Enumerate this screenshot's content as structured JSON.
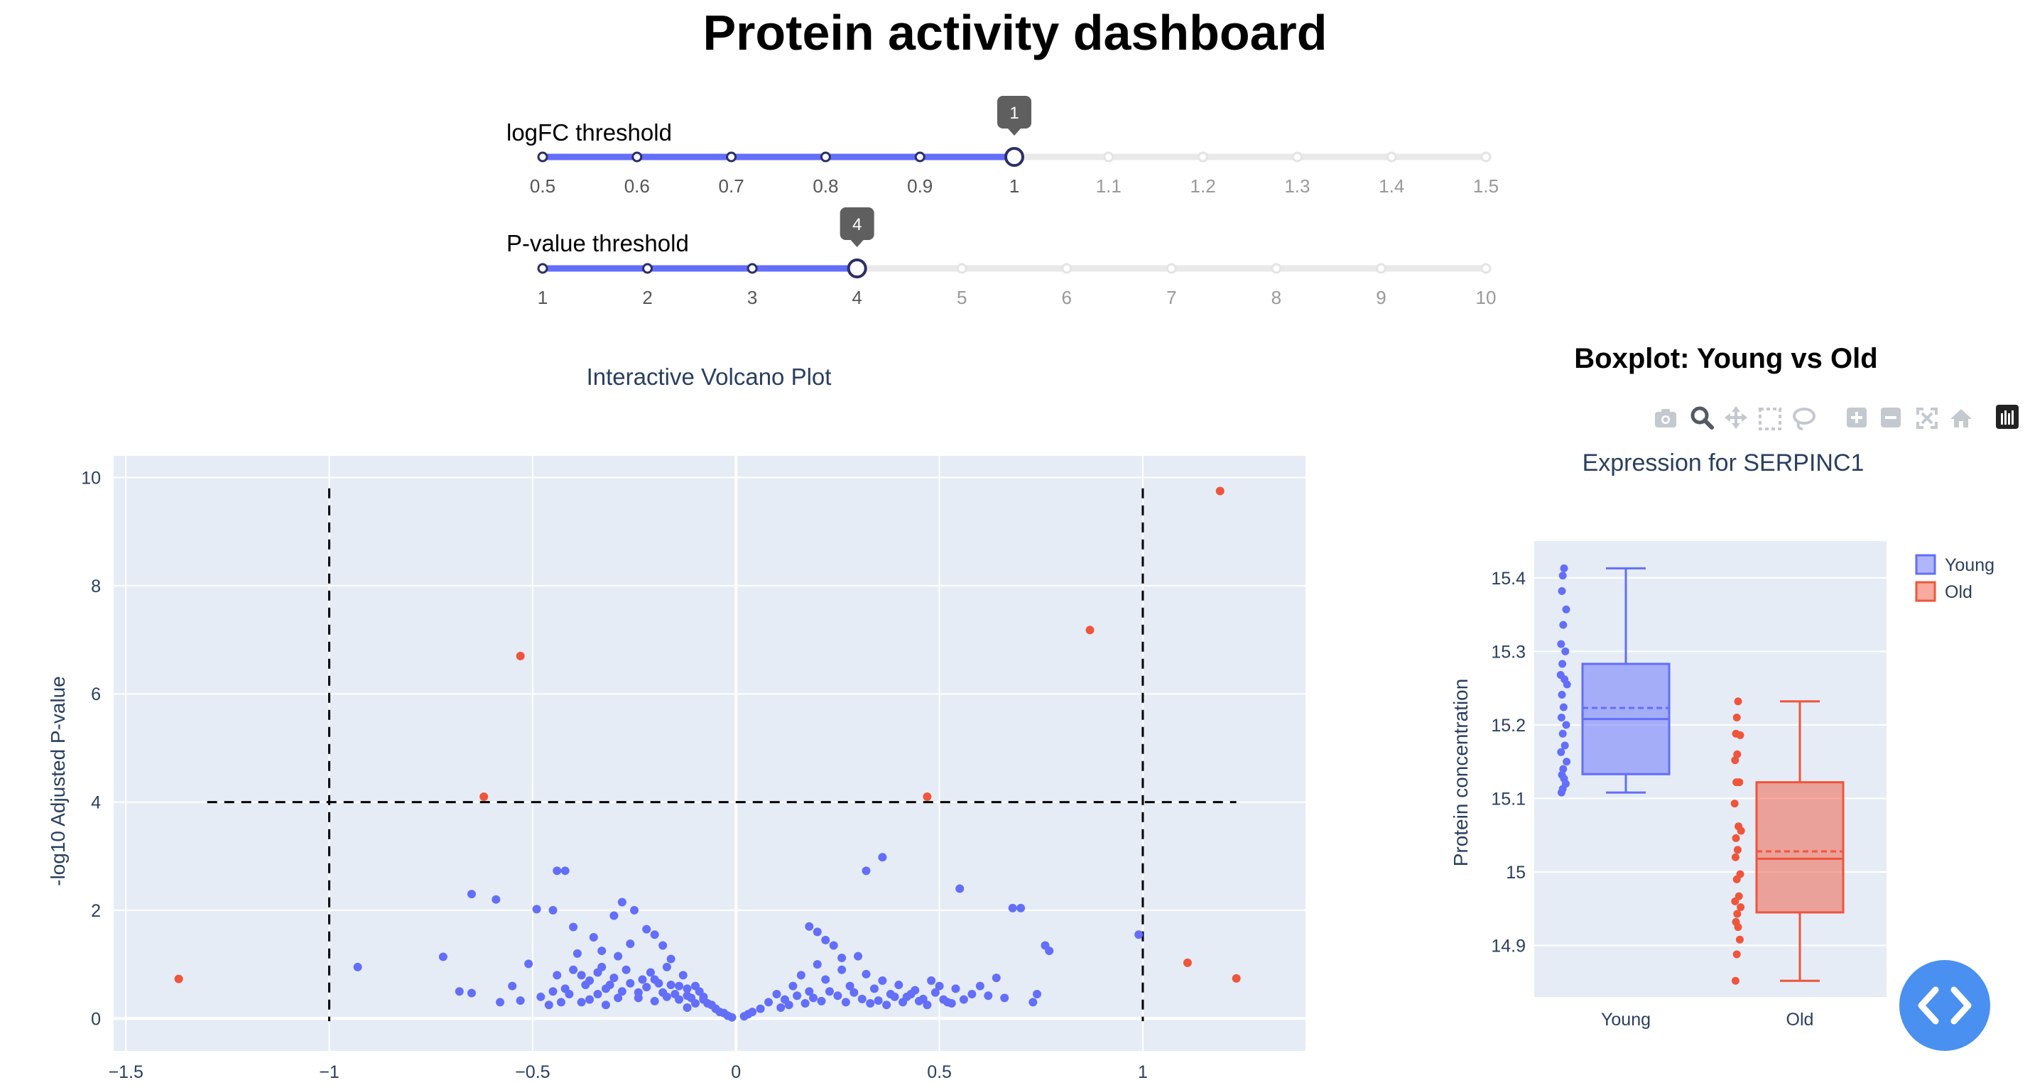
{
  "page": {
    "title": "Protein activity dashboard"
  },
  "sliders": [
    {
      "label": "logFC threshold",
      "marks": [
        "0.5",
        "0.6",
        "0.7",
        "0.8",
        "0.9",
        "1",
        "1.1",
        "1.2",
        "1.3",
        "1.4",
        "1.5"
      ],
      "min": 0.5,
      "max": 1.5,
      "value": 1,
      "tooltip": "1"
    },
    {
      "label": "P-value threshold",
      "marks": [
        "1",
        "2",
        "3",
        "4",
        "5",
        "6",
        "7",
        "8",
        "9",
        "10"
      ],
      "min": 1,
      "max": 10,
      "value": 4,
      "tooltip": "4"
    }
  ],
  "boxplot_panel": {
    "header": "Boxplot: Young vs Old"
  },
  "modebar": {
    "icons": [
      "camera-icon",
      "zoom-icon",
      "pan-icon",
      "box-select-icon",
      "lasso-icon",
      "zoom-in-icon",
      "zoom-out-icon",
      "autoscale-icon",
      "reset-axes-icon",
      "plotly-logo-icon"
    ]
  },
  "colors": {
    "accent": "#636efa",
    "significant": "#ef553b",
    "plot_bg": "#e5ecf6",
    "fab": "#4a90f0"
  },
  "chart_data": [
    {
      "type": "scatter",
      "title": "Interactive Volcano Plot",
      "xlabel": "",
      "ylabel": "-log10 Adjusted P-value",
      "xlim": [
        -1.53,
        1.4
      ],
      "ylim": [
        -0.6,
        10.4
      ],
      "xticks": [
        -1.5,
        -1,
        -0.5,
        0,
        0.5,
        1
      ],
      "xtick_labels": [
        "−1.5",
        "−1",
        "−0.5",
        "0",
        "0.5",
        "1"
      ],
      "yticks": [
        0,
        2,
        4,
        6,
        8,
        10
      ],
      "ytick_labels": [
        "0",
        "2",
        "4",
        "6",
        "8",
        "10"
      ],
      "threshold_lines": {
        "x": [
          -1,
          1
        ],
        "y": 4
      },
      "series": [
        {
          "color": "#ef553b",
          "points": [
            [
              1.19,
              9.75
            ],
            [
              0.87,
              7.18
            ],
            [
              -0.53,
              6.7
            ],
            [
              -0.62,
              4.1
            ],
            [
              0.47,
              4.1
            ],
            [
              1.11,
              1.03
            ],
            [
              1.23,
              0.74
            ],
            [
              -1.37,
              0.73
            ]
          ]
        },
        {
          "color": "#636efa",
          "points": [
            [
              -0.93,
              0.95
            ],
            [
              -0.72,
              1.14
            ],
            [
              -0.65,
              0.47
            ],
            [
              -0.65,
              2.3
            ],
            [
              -0.59,
              2.2
            ],
            [
              -0.53,
              0.33
            ],
            [
              -0.51,
              1.01
            ],
            [
              -0.49,
              2.02
            ],
            [
              -0.45,
              2.0
            ],
            [
              -0.44,
              2.73
            ],
            [
              -0.42,
              2.73
            ],
            [
              -0.4,
              1.69
            ],
            [
              -0.35,
              1.5
            ],
            [
              -0.33,
              1.25
            ],
            [
              -0.3,
              1.9
            ],
            [
              -0.28,
              2.15
            ],
            [
              -0.25,
              2.0
            ],
            [
              -0.22,
              1.65
            ],
            [
              -0.2,
              1.55
            ],
            [
              -0.18,
              1.35
            ],
            [
              -0.16,
              1.1
            ],
            [
              -0.45,
              0.5
            ],
            [
              -0.38,
              0.8
            ],
            [
              -0.31,
              0.62
            ],
            [
              -0.27,
              0.9
            ],
            [
              -0.24,
              0.48
            ],
            [
              -0.21,
              0.85
            ],
            [
              -0.19,
              0.65
            ],
            [
              -0.15,
              0.45
            ],
            [
              -0.13,
              0.8
            ],
            [
              -0.11,
              0.38
            ],
            [
              -0.09,
              0.5
            ],
            [
              -0.07,
              0.28
            ],
            [
              -0.05,
              0.18
            ],
            [
              -0.03,
              0.1
            ],
            [
              -0.02,
              0.05
            ],
            [
              -0.01,
              0.02
            ],
            [
              -0.36,
              0.35
            ],
            [
              -0.33,
              0.95
            ],
            [
              -0.29,
              1.15
            ],
            [
              -0.26,
              1.38
            ],
            [
              -0.23,
              0.72
            ],
            [
              -0.17,
              0.95
            ],
            [
              -0.14,
              0.6
            ],
            [
              -0.12,
              0.42
            ],
            [
              -0.1,
              0.6
            ],
            [
              -0.08,
              0.35
            ],
            [
              -0.06,
              0.25
            ],
            [
              -0.04,
              0.12
            ],
            [
              -0.43,
              0.3
            ],
            [
              -0.41,
              0.45
            ],
            [
              -0.39,
              1.2
            ],
            [
              -0.37,
              0.62
            ],
            [
              -0.34,
              0.45
            ],
            [
              -0.32,
              0.25
            ],
            [
              -0.29,
              0.38
            ],
            [
              -0.2,
              0.32
            ],
            [
              -0.17,
              0.4
            ],
            [
              -0.12,
              0.2
            ],
            [
              0.02,
              0.04
            ],
            [
              0.03,
              0.08
            ],
            [
              0.04,
              0.12
            ],
            [
              0.06,
              0.18
            ],
            [
              0.08,
              0.3
            ],
            [
              0.1,
              0.45
            ],
            [
              0.12,
              0.35
            ],
            [
              0.14,
              0.6
            ],
            [
              0.16,
              0.8
            ],
            [
              0.18,
              0.5
            ],
            [
              0.2,
              1.0
            ],
            [
              0.22,
              0.72
            ],
            [
              0.24,
              1.35
            ],
            [
              0.26,
              0.9
            ],
            [
              0.28,
              0.6
            ],
            [
              0.3,
              1.15
            ],
            [
              0.32,
              0.82
            ],
            [
              0.34,
              0.55
            ],
            [
              0.36,
              0.7
            ],
            [
              0.38,
              0.45
            ],
            [
              0.4,
              0.62
            ],
            [
              0.42,
              0.4
            ],
            [
              0.44,
              0.52
            ],
            [
              0.46,
              0.36
            ],
            [
              0.48,
              0.7
            ],
            [
              0.5,
              0.6
            ],
            [
              0.52,
              0.3
            ],
            [
              0.54,
              0.55
            ],
            [
              0.58,
              0.45
            ],
            [
              0.62,
              0.42
            ],
            [
              0.64,
              0.75
            ],
            [
              0.66,
              0.38
            ],
            [
              0.68,
              2.04
            ],
            [
              0.7,
              2.04
            ],
            [
              0.73,
              0.3
            ],
            [
              0.76,
              1.35
            ],
            [
              0.77,
              1.25
            ],
            [
              0.55,
              2.4
            ],
            [
              0.36,
              2.98
            ],
            [
              0.32,
              2.73
            ],
            [
              0.2,
              1.6
            ],
            [
              0.18,
              1.7
            ],
            [
              0.22,
              1.45
            ],
            [
              0.26,
              1.12
            ],
            [
              0.99,
              1.55
            ],
            [
              0.11,
              0.2
            ],
            [
              0.13,
              0.25
            ],
            [
              0.15,
              0.42
            ],
            [
              0.17,
              0.28
            ],
            [
              0.19,
              0.38
            ],
            [
              0.21,
              0.32
            ],
            [
              0.23,
              0.5
            ],
            [
              0.25,
              0.42
            ],
            [
              0.27,
              0.3
            ],
            [
              0.29,
              0.48
            ],
            [
              0.31,
              0.36
            ],
            [
              0.33,
              0.28
            ],
            [
              0.35,
              0.33
            ],
            [
              0.37,
              0.25
            ],
            [
              0.39,
              0.4
            ],
            [
              0.41,
              0.3
            ],
            [
              0.43,
              0.45
            ],
            [
              0.45,
              0.32
            ],
            [
              0.47,
              0.25
            ],
            [
              0.49,
              0.48
            ],
            [
              0.51,
              0.35
            ],
            [
              0.53,
              0.28
            ],
            [
              0.56,
              0.35
            ],
            [
              0.6,
              0.6
            ],
            [
              0.74,
              0.45
            ],
            [
              -0.68,
              0.5
            ],
            [
              -0.58,
              0.3
            ],
            [
              -0.55,
              0.6
            ],
            [
              -0.48,
              0.4
            ],
            [
              -0.46,
              0.25
            ],
            [
              -0.44,
              0.8
            ],
            [
              -0.42,
              0.55
            ],
            [
              -0.4,
              0.9
            ],
            [
              -0.38,
              0.3
            ],
            [
              -0.36,
              0.7
            ],
            [
              -0.34,
              0.85
            ],
            [
              -0.32,
              0.55
            ],
            [
              -0.3,
              0.75
            ],
            [
              -0.28,
              0.5
            ],
            [
              -0.26,
              0.65
            ],
            [
              -0.24,
              0.38
            ],
            [
              -0.22,
              0.58
            ],
            [
              -0.2,
              0.72
            ],
            [
              -0.18,
              0.48
            ],
            [
              -0.16,
              0.62
            ],
            [
              -0.14,
              0.35
            ],
            [
              -0.12,
              0.55
            ],
            [
              -0.1,
              0.28
            ],
            [
              -0.08,
              0.4
            ]
          ]
        }
      ]
    },
    {
      "type": "box",
      "title": "Expression for SERPINC1",
      "xlabel": "",
      "ylabel": "Protein concentration",
      "ylim": [
        14.83,
        15.45
      ],
      "yticks": [
        14.9,
        15,
        15.1,
        15.2,
        15.3,
        15.4
      ],
      "ytick_labels": [
        "14.9",
        "15",
        "15.1",
        "15.2",
        "15.3",
        "15.4"
      ],
      "categories": [
        "Young",
        "Old"
      ],
      "series": [
        {
          "name": "Young",
          "color": "#636efa",
          "min": 15.108,
          "q1": 15.133,
          "median": 15.208,
          "q3": 15.283,
          "max": 15.413,
          "mean": 15.223,
          "points": [
            15.413,
            15.403,
            15.382,
            15.357,
            15.336,
            15.31,
            15.3,
            15.283,
            15.268,
            15.262,
            15.255,
            15.241,
            15.224,
            15.21,
            15.2,
            15.188,
            15.172,
            15.163,
            15.15,
            15.14,
            15.132,
            15.127,
            15.12,
            15.113,
            15.108
          ]
        },
        {
          "name": "Old",
          "color": "#ef553b",
          "min": 14.852,
          "q1": 14.945,
          "median": 15.018,
          "q3": 15.122,
          "max": 15.232,
          "mean": 15.028,
          "points": [
            15.232,
            15.21,
            15.188,
            15.186,
            15.16,
            15.152,
            15.122,
            15.122,
            15.093,
            15.062,
            15.056,
            15.046,
            15.03,
            15.02,
            14.997,
            14.99,
            14.967,
            14.96,
            14.952,
            14.943,
            14.932,
            14.925,
            14.908,
            14.888,
            14.852
          ]
        }
      ],
      "legend": {
        "position": "top-right",
        "entries": [
          "Young",
          "Old"
        ]
      }
    }
  ]
}
